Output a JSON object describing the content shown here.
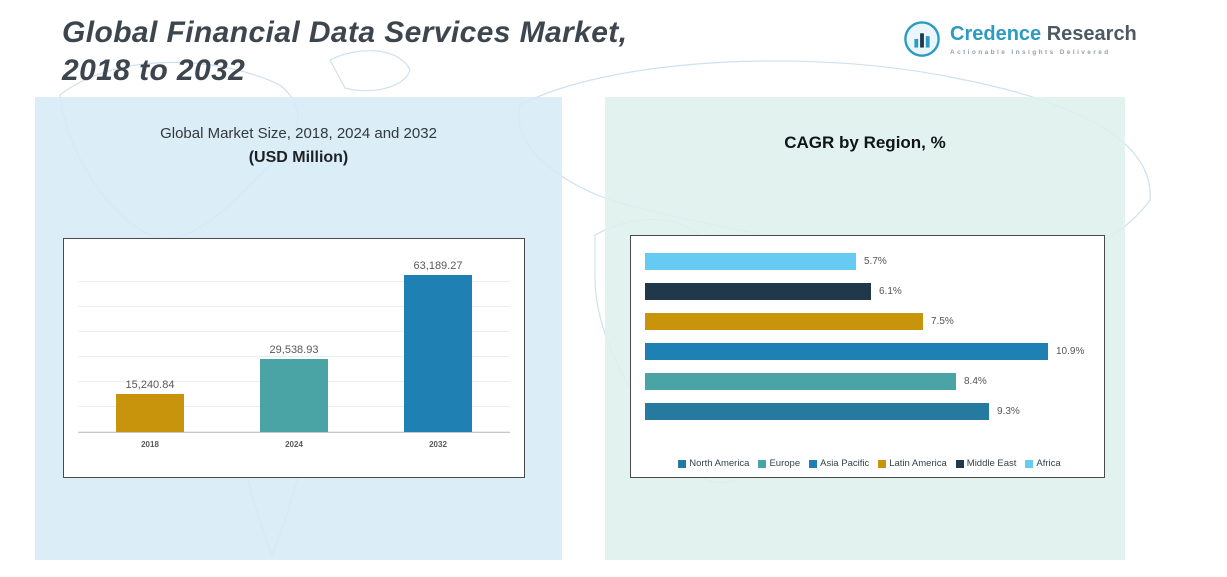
{
  "header": {
    "title_line1": "Global Financial Data Services Market,",
    "title_line2": "2018 to 2032"
  },
  "logo": {
    "brand_primary": "Credence",
    "brand_secondary": "Research",
    "tagline": "Actionable Insights Delivered"
  },
  "chart_data": [
    {
      "type": "bar",
      "orientation": "vertical",
      "title": "Global Market Size, 2018, 2024 and 2032",
      "subtitle": "(USD Million)",
      "categories": [
        "2018",
        "2024",
        "2032"
      ],
      "values": [
        15240.84,
        29538.93,
        63189.27
      ],
      "value_labels": [
        "15,240.84",
        "29,538.93",
        "63,189.27"
      ],
      "colors": [
        "#c8940b",
        "#4aa4a6",
        "#1f80b4"
      ],
      "xlabel": "",
      "ylabel": "USD Million",
      "ylim": [
        0,
        70000
      ],
      "grid": true
    },
    {
      "type": "bar",
      "orientation": "horizontal",
      "title": "CAGR by Region, %",
      "categories": [
        "Africa",
        "Middle East",
        "Latin America",
        "Asia Pacific",
        "Europe",
        "North America"
      ],
      "values": [
        5.7,
        6.1,
        7.5,
        10.9,
        8.4,
        9.3
      ],
      "value_labels": [
        "5.7%",
        "6.1%",
        "7.5%",
        "10.9%",
        "8.4%",
        "9.3%"
      ],
      "colors": [
        "#66cbf3",
        "#21374a",
        "#c8940b",
        "#1f80b4",
        "#4aa4a6",
        "#26799f"
      ],
      "xlabel": "CAGR %",
      "ylabel": "",
      "xlim": [
        0,
        12
      ],
      "grid": false,
      "legend_position": "bottom",
      "legend": [
        {
          "label": "North America",
          "color": "#26799f"
        },
        {
          "label": "Europe",
          "color": "#4aa4a6"
        },
        {
          "label": "Asia Pacific",
          "color": "#1f80b4"
        },
        {
          "label": "Latin America",
          "color": "#c8940b"
        },
        {
          "label": "Middle East",
          "color": "#21374a"
        },
        {
          "label": "Africa",
          "color": "#66cbf3"
        }
      ]
    }
  ]
}
